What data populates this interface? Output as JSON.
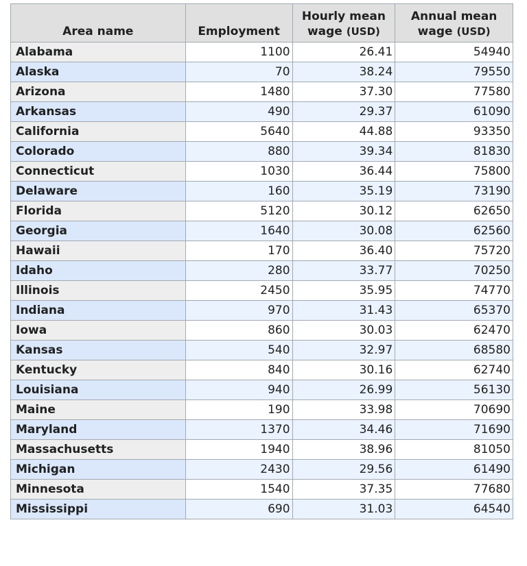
{
  "table": {
    "headers": {
      "area": "Area name",
      "employment": "Employment",
      "hourly_line1": "Hourly mean",
      "hourly_line2": "wage ",
      "hourly_unit": "(USD)",
      "annual_line1": "Annual mean",
      "annual_line2": "wage ",
      "annual_unit": "(USD)"
    },
    "rows": [
      {
        "area": "Alabama",
        "employment": "1100",
        "hourly": "26.41",
        "annual": "54940"
      },
      {
        "area": "Alaska",
        "employment": "70",
        "hourly": "38.24",
        "annual": "79550"
      },
      {
        "area": "Arizona",
        "employment": "1480",
        "hourly": "37.30",
        "annual": "77580"
      },
      {
        "area": "Arkansas",
        "employment": "490",
        "hourly": "29.37",
        "annual": "61090"
      },
      {
        "area": "California",
        "employment": "5640",
        "hourly": "44.88",
        "annual": "93350"
      },
      {
        "area": "Colorado",
        "employment": "880",
        "hourly": "39.34",
        "annual": "81830"
      },
      {
        "area": "Connecticut",
        "employment": "1030",
        "hourly": "36.44",
        "annual": "75800"
      },
      {
        "area": "Delaware",
        "employment": "160",
        "hourly": "35.19",
        "annual": "73190"
      },
      {
        "area": "Florida",
        "employment": "5120",
        "hourly": "30.12",
        "annual": "62650"
      },
      {
        "area": "Georgia",
        "employment": "1640",
        "hourly": "30.08",
        "annual": "62560"
      },
      {
        "area": "Hawaii",
        "employment": "170",
        "hourly": "36.40",
        "annual": "75720"
      },
      {
        "area": "Idaho",
        "employment": "280",
        "hourly": "33.77",
        "annual": "70250"
      },
      {
        "area": "Illinois",
        "employment": "2450",
        "hourly": "35.95",
        "annual": "74770"
      },
      {
        "area": "Indiana",
        "employment": "970",
        "hourly": "31.43",
        "annual": "65370"
      },
      {
        "area": "Iowa",
        "employment": "860",
        "hourly": "30.03",
        "annual": "62470"
      },
      {
        "area": "Kansas",
        "employment": "540",
        "hourly": "32.97",
        "annual": "68580"
      },
      {
        "area": "Kentucky",
        "employment": "840",
        "hourly": "30.16",
        "annual": "62740"
      },
      {
        "area": "Louisiana",
        "employment": "940",
        "hourly": "26.99",
        "annual": "56130"
      },
      {
        "area": "Maine",
        "employment": "190",
        "hourly": "33.98",
        "annual": "70690"
      },
      {
        "area": "Maryland",
        "employment": "1370",
        "hourly": "34.46",
        "annual": "71690"
      },
      {
        "area": "Massachusetts",
        "employment": "1940",
        "hourly": "38.96",
        "annual": "81050"
      },
      {
        "area": "Michigan",
        "employment": "2430",
        "hourly": "29.56",
        "annual": "61490"
      },
      {
        "area": "Minnesota",
        "employment": "1540",
        "hourly": "37.35",
        "annual": "77680"
      },
      {
        "area": "Mississippi",
        "employment": "690",
        "hourly": "31.03",
        "annual": "64540"
      }
    ]
  },
  "colors": {
    "header_bg": "#e0e0e0",
    "name_bg": "#eeeeee",
    "name_alt_bg": "#dbe8fb",
    "cell_alt_bg": "#eaf3ff",
    "border": "#a2a9b1"
  }
}
